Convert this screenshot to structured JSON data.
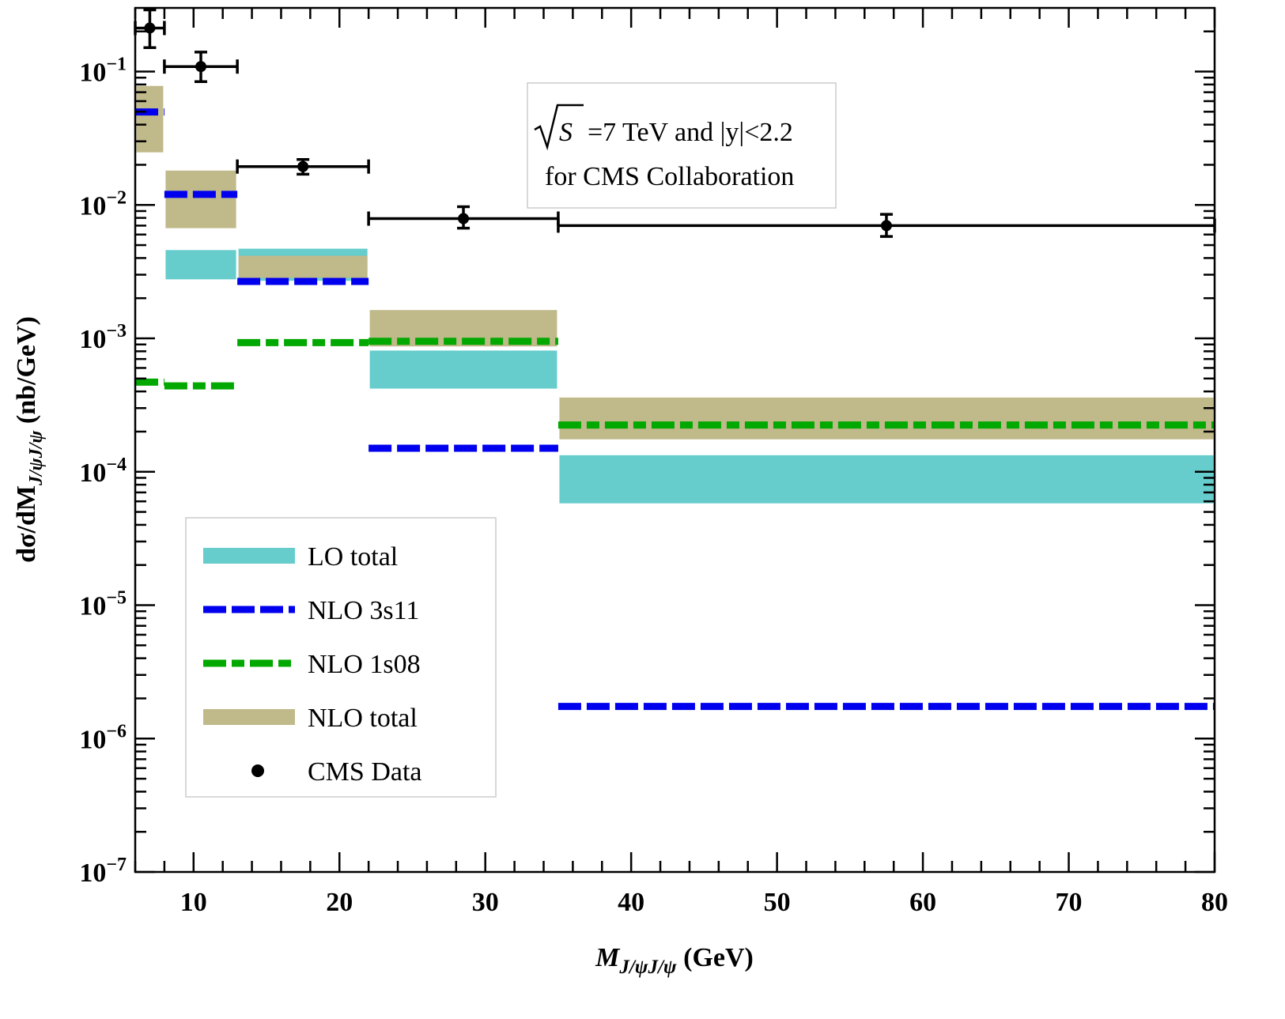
{
  "chart_data": {
    "type": "bar",
    "xlabel": {
      "main": "M",
      "sub": "J/ψJ/ψ",
      "unit": " (GeV)"
    },
    "ylabel": {
      "main": "dσ/dM",
      "sub": "J/ψJ/ψ",
      "unit": " (nb/GeV)"
    },
    "xlim": [
      6,
      80
    ],
    "ylim": [
      1e-07,
      0.3
    ],
    "yscale": "log",
    "grid": false,
    "x_ticks": [
      10,
      20,
      30,
      40,
      50,
      60,
      70,
      80
    ],
    "y_ticks": [
      {
        "base": "10",
        "exp": "−1",
        "value": 0.1
      },
      {
        "base": "10",
        "exp": "−2",
        "value": 0.01
      },
      {
        "base": "10",
        "exp": "−3",
        "value": 0.001
      },
      {
        "base": "10",
        "exp": "−4",
        "value": 0.0001
      },
      {
        "base": "10",
        "exp": "−5",
        "value": 1e-05
      },
      {
        "base": "10",
        "exp": "−6",
        "value": 1e-06
      },
      {
        "base": "10",
        "exp": "−7",
        "value": 1e-07
      }
    ],
    "bins": [
      [
        6,
        8
      ],
      [
        8,
        13
      ],
      [
        13,
        22
      ],
      [
        22,
        35
      ],
      [
        35,
        80
      ]
    ],
    "annotation": {
      "line1_symbol": "S",
      "line1": "=7 TeV and |y|<2.2",
      "line2": "for CMS Collaboration"
    },
    "legend_placement": "lower-left",
    "series": [
      {
        "name": "LO total",
        "kind": "band",
        "color": "#66CCCC",
        "lower": [
          null,
          0.00277,
          0.0027,
          0.00042,
          5.8e-05
        ],
        "upper": [
          null,
          0.00459,
          0.0047,
          0.00081,
          0.000133
        ]
      },
      {
        "name": "NLO total",
        "kind": "band",
        "color": "#C0B98A",
        "lower": [
          0.0248,
          0.0067,
          0.00284,
          0.00087,
          0.000175
        ],
        "upper": [
          0.078,
          0.0181,
          0.00416,
          0.00163,
          0.00036
        ]
      },
      {
        "name": "NLO 3s11",
        "kind": "dashed",
        "color": "#0000EE",
        "values": [
          0.0498,
          0.012,
          0.00267,
          0.00015,
          1.74e-06
        ]
      },
      {
        "name": "NLO 1s08",
        "kind": "dashdot",
        "color": "#00A800",
        "values": [
          0.00047,
          0.00044,
          0.00093,
          0.00095,
          0.000224
        ]
      },
      {
        "name": "CMS Data",
        "kind": "points",
        "color": "#000000",
        "x": [
          7,
          10.5,
          17.5,
          28.5,
          57.5
        ],
        "y": [
          0.212,
          0.109,
          0.0194,
          0.0079,
          0.007
        ],
        "y_err_low": [
          0.151,
          0.084,
          0.017,
          0.0067,
          0.0058
        ],
        "y_err_high": [
          0.29,
          0.14,
          0.0219,
          0.0097,
          0.0085
        ]
      }
    ]
  }
}
